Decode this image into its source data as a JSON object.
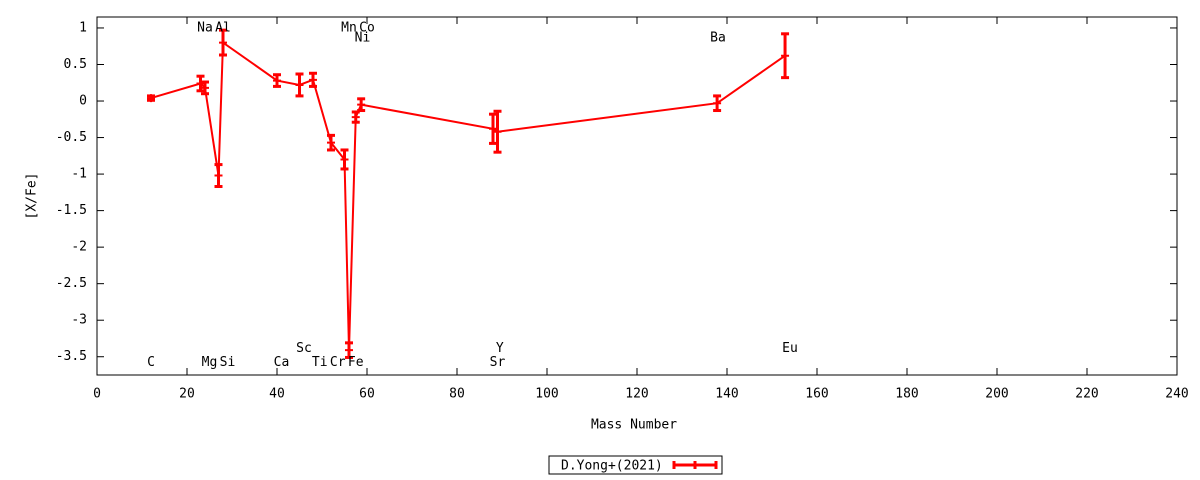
{
  "chart_data": {
    "type": "errorline",
    "x_label": "Mass Number",
    "y_label": "[X/Fe]",
    "xlim": [
      0,
      240
    ],
    "xticks": [
      0,
      20,
      40,
      60,
      80,
      100,
      120,
      140,
      160,
      180,
      200,
      220,
      240
    ],
    "ylim": [
      -3.75,
      1.15
    ],
    "yticks": [
      1,
      0.5,
      0,
      -0.5,
      -1,
      -1.5,
      -2,
      -2.5,
      -3,
      -3.5
    ],
    "grid": false,
    "legend": "bottom center",
    "series": [
      {
        "name": "D.Yong+(2021)",
        "color": "#ff0000",
        "x": [
          12,
          23,
          24,
          27,
          28,
          40,
          45,
          48,
          52,
          55,
          56,
          57.5,
          58.7,
          88,
          89,
          137.8,
          152.9
        ],
        "values": [
          0.04,
          0.24,
          0.18,
          -1.02,
          0.8,
          0.28,
          0.22,
          0.29,
          -0.57,
          -0.8,
          -3.41,
          -0.22,
          -0.05,
          -0.38,
          -0.42,
          -0.03,
          0.62
        ],
        "errors": [
          0.03,
          0.1,
          0.08,
          0.15,
          0.17,
          0.08,
          0.15,
          0.09,
          0.1,
          0.13,
          0.1,
          0.07,
          0.08,
          0.2,
          0.28,
          0.1,
          0.3
        ]
      }
    ],
    "annotations": [
      {
        "text": "C",
        "x": 12,
        "y": -3.58
      },
      {
        "text": "Na",
        "x": 24,
        "y": 1.0
      },
      {
        "text": "Mg",
        "x": 25,
        "y": -3.58
      },
      {
        "text": "Al",
        "x": 28,
        "y": 1.0
      },
      {
        "text": "Si",
        "x": 29,
        "y": -3.58
      },
      {
        "text": "Ca",
        "x": 41,
        "y": -3.58
      },
      {
        "text": "Sc",
        "x": 46,
        "y": -3.39
      },
      {
        "text": "Ti",
        "x": 49.5,
        "y": -3.58
      },
      {
        "text": "Cr",
        "x": 53.5,
        "y": -3.58
      },
      {
        "text": "Fe",
        "x": 57.5,
        "y": -3.58
      },
      {
        "text": "Mn",
        "x": 56,
        "y": 1.0
      },
      {
        "text": "Co",
        "x": 60,
        "y": 1.0
      },
      {
        "text": "Ni",
        "x": 59,
        "y": 0.86
      },
      {
        "text": "Sr",
        "x": 89,
        "y": -3.58
      },
      {
        "text": "Y",
        "x": 89.5,
        "y": -3.39
      },
      {
        "text": "Ba",
        "x": 138,
        "y": 0.86
      },
      {
        "text": "Eu",
        "x": 154,
        "y": -3.39
      }
    ]
  }
}
